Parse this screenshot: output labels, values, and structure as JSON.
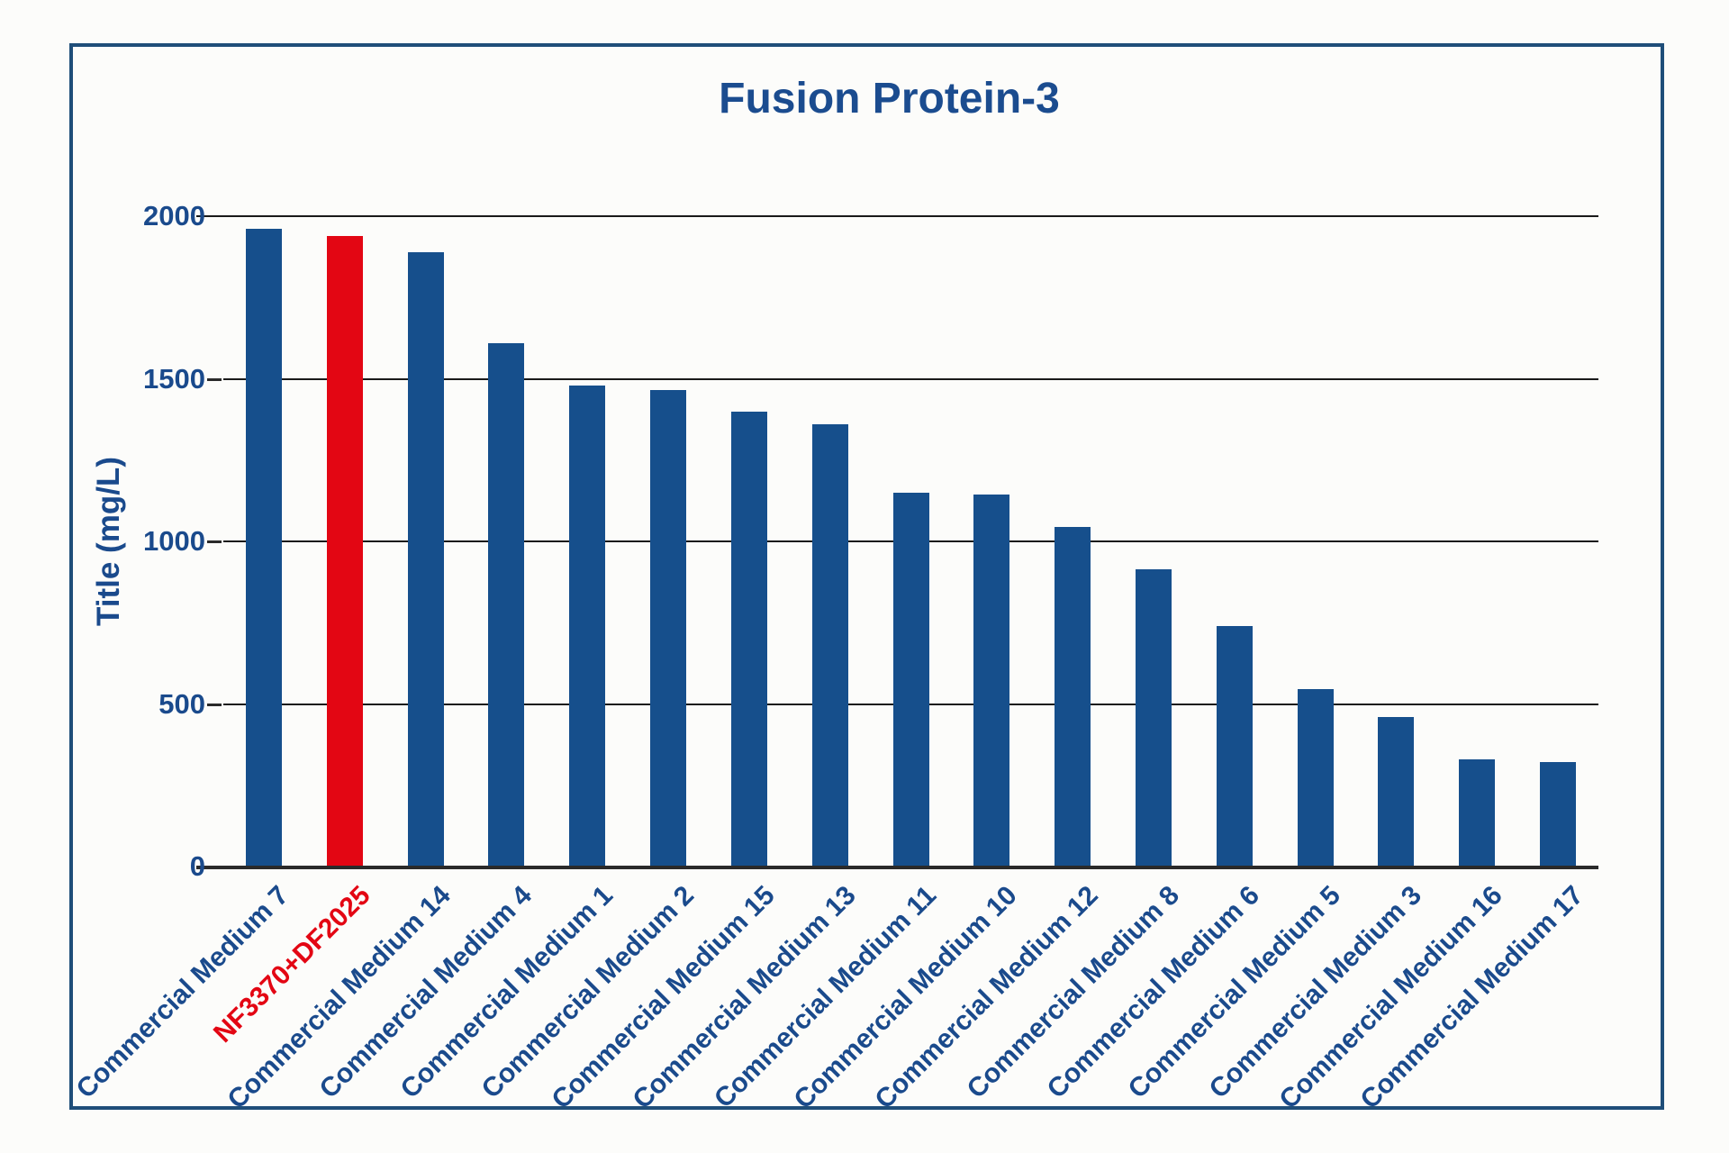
{
  "figure": {
    "title": "Fusion Protein-3"
  },
  "colors": {
    "bar_blue": "#164F8C",
    "bar_red": "#E30613",
    "text_blue": "#1A4A8C",
    "title_blue": "#1B4C8F",
    "frame_border": "#1F4E79",
    "gridline": "#1A1A1A",
    "axis_line": "#2A2A2A",
    "background": "#FCFCFA"
  },
  "chart_data": {
    "type": "bar",
    "title": "Fusion Protein-3",
    "xlabel": "",
    "ylabel": "Title (mg/L)",
    "ylim": [
      0,
      2000
    ],
    "yticks": [
      0,
      500,
      1000,
      1500,
      2000
    ],
    "grid": "horizontal",
    "legend": "none",
    "categories": [
      "Commercial Medium 7",
      "NF3370+DF2025",
      "Commercial Medium 14",
      "Commercial Medium 4",
      "Commercial Medium 1",
      "Commercial Medium 2",
      "Commercial Medium 15",
      "Commercial Medium 13",
      "Commercial Medium 11",
      "Commercial Medium 10",
      "Commercial Medium 12",
      "Commercial Medium 8",
      "Commercial Medium 6",
      "Commercial Medium 5",
      "Commercial Medium 3",
      "Commercial Medium 16",
      "Commercial Medium 17"
    ],
    "values": [
      1960,
      1940,
      1890,
      1610,
      1480,
      1465,
      1400,
      1360,
      1150,
      1145,
      1045,
      915,
      740,
      545,
      460,
      330,
      320
    ],
    "highlight_index": 1,
    "x_tick_rotation_deg": 45
  }
}
